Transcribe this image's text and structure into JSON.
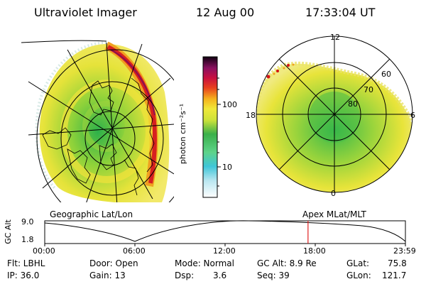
{
  "header": {
    "instrument": "Ultraviolet Imager",
    "date": "12 Aug 00",
    "time": "17:33:04 UT"
  },
  "left_panel": {
    "caption": "Geographic Lat/Lon"
  },
  "right_panel": {
    "caption": "Apex MLat/MLT",
    "mlt_labels": [
      "12",
      "18",
      "6",
      "0"
    ],
    "lat_labels": [
      "60",
      "70",
      "80"
    ]
  },
  "colorbar": {
    "label": "photon cm⁻²s⁻¹",
    "ticks": [
      "100",
      "10"
    ]
  },
  "timeline": {
    "ylabel": "GC Alt",
    "ytick_top": "9.0",
    "ytick_bottom": "1.8",
    "xticks": [
      "00:00",
      "06:00",
      "12:00",
      "18:00",
      "23:59"
    ],
    "current_time_fraction": 0.73
  },
  "footer": {
    "flt": "Flt: LBHL",
    "ip": "IP: 36.0",
    "door": "Door: Open",
    "gain": "Gain: 13",
    "mode": "Mode: Normal",
    "dsp_label": "Dsp:",
    "dsp_value": "3.6",
    "gcalt": "GC Alt: 8.9 Re",
    "seq": "Seq: 39",
    "glat_label": "GLat:",
    "glat_value": "75.8",
    "glon_label": "GLon:",
    "glon_value": "121.7"
  }
}
